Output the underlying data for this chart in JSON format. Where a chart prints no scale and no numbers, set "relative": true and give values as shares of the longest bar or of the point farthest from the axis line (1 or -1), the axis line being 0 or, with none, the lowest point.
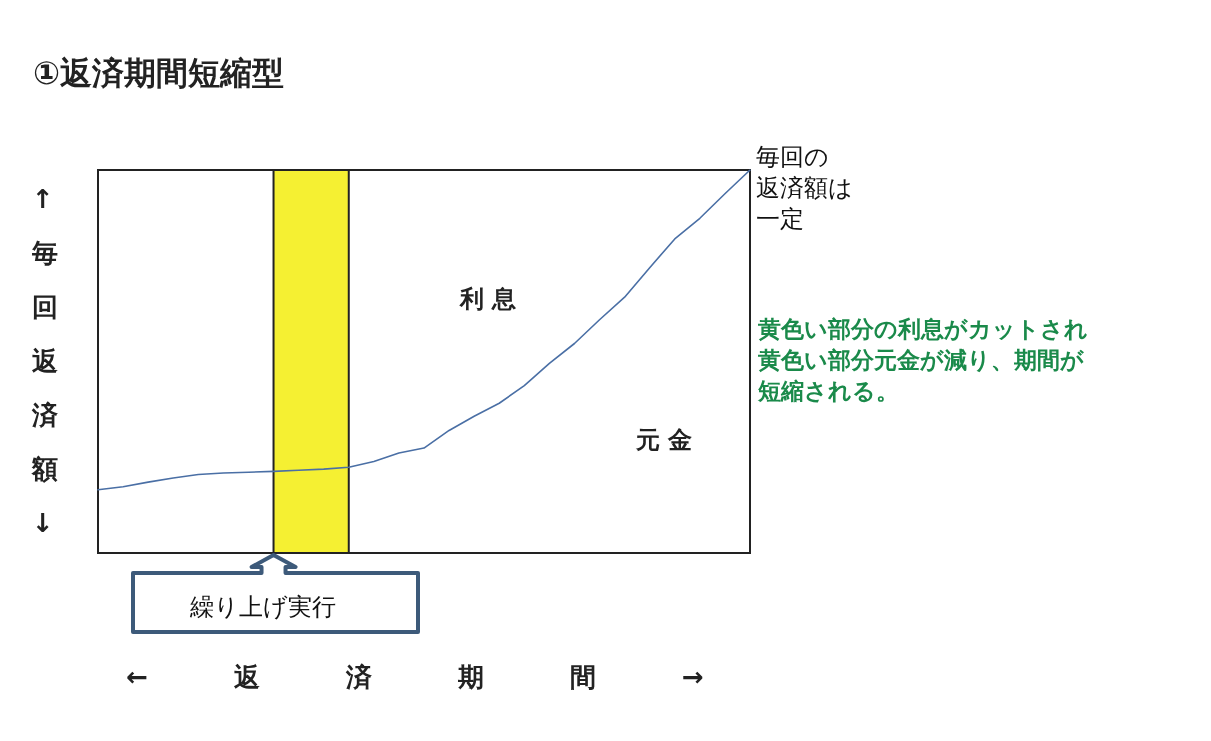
{
  "chart_data": {
    "type": "line",
    "title": "①返済期間短縮型",
    "xlabel": "←　返　済　期　間　→",
    "ylabel": "↑毎回返済額↓",
    "relative": true,
    "grid": false,
    "marker": "none",
    "line_style": "solid",
    "categories": [
      null,
      null,
      null,
      null,
      null,
      null,
      null,
      null,
      null,
      null,
      null,
      null,
      null,
      null,
      null,
      null,
      null,
      null,
      null,
      null,
      null,
      null,
      null,
      null,
      null,
      null,
      null
    ],
    "series": [
      {
        "color": "#4a6fa5",
        "values": [
          0.165,
          0.173,
          0.185,
          0.196,
          0.205,
          0.209,
          0.211,
          0.213,
          0.216,
          0.219,
          0.224,
          0.239,
          0.261,
          0.274,
          0.32,
          0.357,
          0.391,
          0.437,
          0.495,
          0.547,
          0.609,
          0.668,
          0.745,
          0.82,
          0.874,
          0.938,
          1
        ]
      }
    ],
    "annotations": [
      "毎回の",
      "返済額は",
      "一定",
      "利 息",
      "元 金",
      "黄色い部分の利息がカットされ",
      "黄色い部分元金が減り、期間が",
      "短縮される。",
      "繰り上げ実行"
    ]
  }
}
